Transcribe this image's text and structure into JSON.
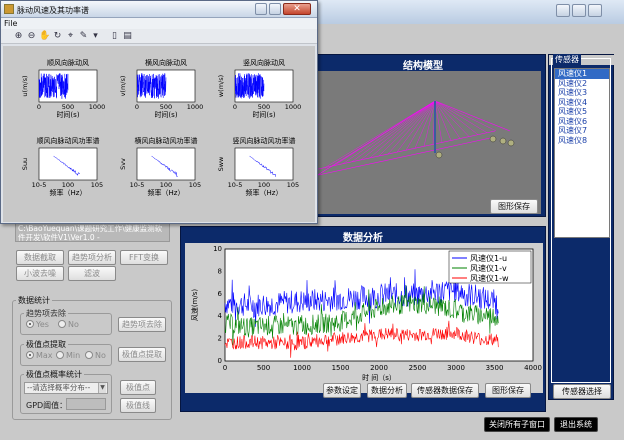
{
  "sub_window": {
    "title": "脉动风速及其功率谱",
    "menu": "File",
    "plots": [
      {
        "title": "顺风向脉动风",
        "ylabel": "u(m/s)",
        "xlabel": "时间(s)",
        "x_ticks": [
          "0",
          "500",
          "1000"
        ]
      },
      {
        "title": "横风向脉动风",
        "ylabel": "v(m/s)",
        "xlabel": "时间(s)",
        "x_ticks": [
          "0",
          "500",
          "1000"
        ]
      },
      {
        "title": "竖风向脉动风",
        "ylabel": "w(m/s)",
        "xlabel": "时间(s)",
        "x_ticks": [
          "0",
          "500",
          "1000"
        ]
      },
      {
        "title": "顺风向脉动风功率谱",
        "ylabel": "Suu",
        "xlabel": "频率（Hz）",
        "x_ticks": [
          "10-5",
          "100",
          "105"
        ]
      },
      {
        "title": "横风向脉动风功率谱",
        "ylabel": "Svv",
        "xlabel": "频率（Hz）",
        "x_ticks": [
          "10-5",
          "100",
          "105"
        ]
      },
      {
        "title": "竖风向脉动风功率谱",
        "ylabel": "Sww",
        "xlabel": "频率（Hz）",
        "x_ticks": [
          "10-5",
          "100",
          "105"
        ]
      }
    ]
  },
  "structure_panel": {
    "title": "结构模型",
    "save_label": "图形保存"
  },
  "sensors": {
    "title": "传感器",
    "items": [
      "风速仪1",
      "风速仪2",
      "风速仪3",
      "风速仪4",
      "风速仪5",
      "风速仪6",
      "风速仪7",
      "风速仪8"
    ],
    "selected_index": 0,
    "select_button": "传感器选择"
  },
  "analysis_panel": {
    "title": "数据分析",
    "buttons": [
      "参数设定",
      "数据分析",
      "传感器数据保存",
      "图形保存"
    ]
  },
  "file_path": "C:\\BaoYuequan\\课题研究工作\\健康监测软件开发\\软件V1\\Ver1.0 -",
  "proc_buttons": {
    "row1": [
      "数据截取",
      "趋势项分析",
      "FFT变换"
    ],
    "row2": [
      "小波去噪",
      "滤波"
    ]
  },
  "stats": {
    "title": "数据统计",
    "trend": {
      "title": "趋势项去除",
      "yes": "Yes",
      "no": "No",
      "button": "趋势项去除"
    },
    "extreme": {
      "title": "极值点提取",
      "max": "Max",
      "min": "Min",
      "no": "No",
      "button": "极值点提取"
    },
    "prob": {
      "title": "极值点概率统计",
      "select_placeholder": "--请选择概率分布--",
      "btn1": "极值点",
      "gpd_label": "GPD阈值：",
      "btn2": "极值线"
    }
  },
  "footer_buttons": {
    "close_children": "关闭所有子窗口",
    "exit": "退出系统"
  },
  "chart_data": {
    "type": "line",
    "ylabel": "风速(m/s)",
    "xlabel": "时 间（s）",
    "xlim": [
      0,
      4000
    ],
    "ylim": [
      0,
      10
    ],
    "x_ticks": [
      "0",
      "500",
      "1000",
      "1500",
      "2000",
      "2500",
      "3000",
      "3500",
      "4000"
    ],
    "y_ticks": [
      "0",
      "2",
      "4",
      "6",
      "8",
      "10"
    ],
    "legend_position": "top-right",
    "series": [
      {
        "name": "风速仪1-u",
        "color": "#0000ff",
        "x": [
          0,
          300,
          600,
          900,
          1200,
          1500,
          1800,
          2100,
          2400,
          2700,
          3000,
          3300,
          3550
        ],
        "values": [
          5.2,
          5.0,
          5.1,
          5.3,
          5.4,
          5.6,
          5.7,
          5.9,
          5.8,
          6.2,
          6.3,
          5.7,
          5.2
        ]
      },
      {
        "name": "风速仪1-v",
        "color": "#008000",
        "x": [
          0,
          300,
          600,
          900,
          1200,
          1500,
          1800,
          2100,
          2400,
          2700,
          3000,
          3300,
          3550
        ],
        "values": [
          3.4,
          3.0,
          3.2,
          3.1,
          3.3,
          3.5,
          4.3,
          4.9,
          5.1,
          5.0,
          4.5,
          4.1,
          4.0
        ]
      },
      {
        "name": "风速仪1-w",
        "color": "#ff0000",
        "x": [
          0,
          300,
          600,
          900,
          1200,
          1500,
          1800,
          2100,
          2400,
          2700,
          3000,
          3300,
          3550
        ],
        "values": [
          1.6,
          1.7,
          1.6,
          1.5,
          1.8,
          2.0,
          2.2,
          2.4,
          2.3,
          2.4,
          2.5,
          2.0,
          1.8
        ]
      }
    ]
  },
  "colors": {
    "panel_blue": "#0c2a6a",
    "list_selected": "#316ac5",
    "truss": "#ff00ff"
  }
}
